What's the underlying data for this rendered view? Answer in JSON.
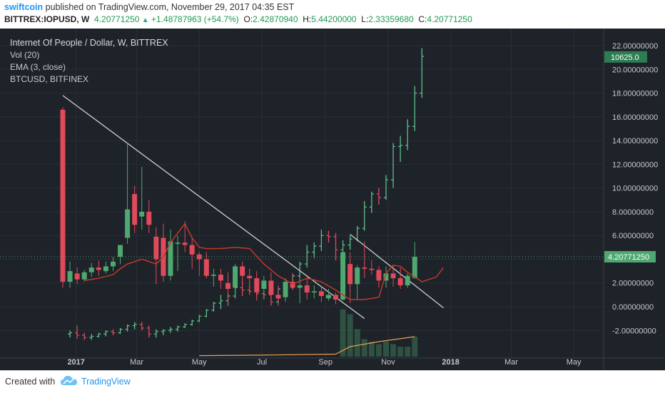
{
  "header": {
    "author": "swiftcoin",
    "publish_text": "published on TradingView.com, November 29, 2017 04:35 EST",
    "symbol": "BITTREX:IOPUSD, W",
    "last": "4.20771250",
    "change": "+1.48787963 (+54.7%)",
    "open": "2.42870940",
    "high": "5.44200000",
    "low": "2.33359680",
    "close": "4.20771250"
  },
  "legend": {
    "title": "Internet Of People / Dollar, W, BITTREX",
    "vol": "Vol (20)",
    "ema": "EMA (3, close)",
    "compare": "BTCUSD, BITFINEX"
  },
  "footer": {
    "created_with": "Created with",
    "brand": "TradingView"
  },
  "colors": {
    "up": "#4ea86f",
    "down": "#e04a5a",
    "ema": "#c0392b",
    "btc": "#2e7d52",
    "trend": "#d0d0d0",
    "background": "#1e2229",
    "grid": "#2a2e36"
  },
  "chart_data": {
    "type": "candlestick",
    "y_axis": {
      "min": -3,
      "max": 22,
      "ticks": [
        22,
        20,
        18,
        16,
        14,
        12,
        10,
        8,
        6,
        4,
        2,
        0,
        -2
      ],
      "tick_labels": [
        "22.00000000",
        "20.00000000",
        "18.00000000",
        "16.00000000",
        "14.00000000",
        "12.00000000",
        "10.00000000",
        "8.00000000",
        "6.00000000",
        "",
        "2.00000000",
        "0.00000000",
        "-2.00000000"
      ]
    },
    "x_axis": {
      "start": "2016-12-19",
      "end": "2018-05-28",
      "labels": [
        {
          "date": "2017-01-01",
          "text": "2017",
          "bold": true
        },
        {
          "date": "2017-03-01",
          "text": "Mar",
          "bold": false
        },
        {
          "date": "2017-05-01",
          "text": "May",
          "bold": false
        },
        {
          "date": "2017-07-01",
          "text": "Jul",
          "bold": false
        },
        {
          "date": "2017-09-01",
          "text": "Sep",
          "bold": false
        },
        {
          "date": "2017-11-01",
          "text": "Nov",
          "bold": false
        },
        {
          "date": "2018-01-01",
          "text": "2018",
          "bold": true
        },
        {
          "date": "2018-03-01",
          "text": "Mar",
          "bold": false
        },
        {
          "date": "2018-05-01",
          "text": "May",
          "bold": false
        }
      ]
    },
    "last_price": {
      "value": 4.2077125,
      "label": "4.20771250"
    },
    "compare_last": {
      "value": 21.05,
      "label": "10625.0"
    },
    "candles": [
      {
        "date": "2016-12-19",
        "o": 16.6,
        "h": 16.8,
        "l": 1.6,
        "c": 2.1
      },
      {
        "date": "2016-12-26",
        "o": 2.1,
        "h": 3.8,
        "l": 1.6,
        "c": 3.0
      },
      {
        "date": "2017-01-02",
        "o": 2.8,
        "h": 3.3,
        "l": 1.9,
        "c": 2.3
      },
      {
        "date": "2017-01-09",
        "o": 2.3,
        "h": 3.1,
        "l": 2.1,
        "c": 2.9
      },
      {
        "date": "2017-01-16",
        "o": 2.9,
        "h": 3.7,
        "l": 2.5,
        "c": 3.3
      },
      {
        "date": "2017-01-23",
        "o": 3.3,
        "h": 3.9,
        "l": 2.6,
        "c": 3.1
      },
      {
        "date": "2017-01-30",
        "o": 3.0,
        "h": 3.8,
        "l": 2.8,
        "c": 3.4
      },
      {
        "date": "2017-02-06",
        "o": 3.4,
        "h": 4.2,
        "l": 3.0,
        "c": 3.8
      },
      {
        "date": "2017-02-13",
        "o": 4.2,
        "h": 5.2,
        "l": 3.6,
        "c": 5.2
      },
      {
        "date": "2017-02-20",
        "o": 5.8,
        "h": 13.8,
        "l": 5.3,
        "c": 8.2
      },
      {
        "date": "2017-02-27",
        "o": 9.5,
        "h": 10.2,
        "l": 6.2,
        "c": 6.9
      },
      {
        "date": "2017-03-06",
        "o": 7.6,
        "h": 11.8,
        "l": 6.5,
        "c": 8.0
      },
      {
        "date": "2017-03-13",
        "o": 8.0,
        "h": 9.0,
        "l": 6.2,
        "c": 6.9
      },
      {
        "date": "2017-03-20",
        "o": 5.9,
        "h": 6.7,
        "l": 1.9,
        "c": 4.0
      },
      {
        "date": "2017-03-27",
        "o": 5.8,
        "h": 7.0,
        "l": 2.1,
        "c": 2.6
      },
      {
        "date": "2017-04-03",
        "o": 2.6,
        "h": 6.5,
        "l": 2.2,
        "c": 5.5
      },
      {
        "date": "2017-04-10",
        "o": 5.3,
        "h": 6.0,
        "l": 3.0,
        "c": 5.4
      },
      {
        "date": "2017-04-17",
        "o": 5.4,
        "h": 7.2,
        "l": 4.6,
        "c": 5.2
      },
      {
        "date": "2017-04-24",
        "o": 5.2,
        "h": 5.8,
        "l": 3.2,
        "c": 4.4
      },
      {
        "date": "2017-05-01",
        "o": 4.4,
        "h": 4.6,
        "l": 2.6,
        "c": 4.0
      },
      {
        "date": "2017-05-08",
        "o": 4.0,
        "h": 4.6,
        "l": 2.4,
        "c": 2.6
      },
      {
        "date": "2017-05-15",
        "o": 2.6,
        "h": 3.2,
        "l": 1.7,
        "c": 2.7
      },
      {
        "date": "2017-05-22",
        "o": 2.7,
        "h": 3.2,
        "l": 1.5,
        "c": 2.2
      },
      {
        "date": "2017-05-29",
        "o": 2.0,
        "h": 2.9,
        "l": 0.2,
        "c": 1.5
      },
      {
        "date": "2017-06-05",
        "o": 1.6,
        "h": 3.6,
        "l": 0.8,
        "c": 3.4
      },
      {
        "date": "2017-06-12",
        "o": 3.4,
        "h": 3.8,
        "l": 2.2,
        "c": 2.6
      },
      {
        "date": "2017-06-19",
        "o": 2.6,
        "h": 3.2,
        "l": 1.9,
        "c": 2.4
      },
      {
        "date": "2017-06-26",
        "o": 2.4,
        "h": 3.0,
        "l": 0.5,
        "c": 1.2
      },
      {
        "date": "2017-07-03",
        "o": 1.5,
        "h": 2.6,
        "l": 0.6,
        "c": 2.2
      },
      {
        "date": "2017-07-10",
        "o": 2.2,
        "h": 2.9,
        "l": 0.8,
        "c": 1.0
      },
      {
        "date": "2017-07-17",
        "o": 1.0,
        "h": 1.8,
        "l": 0.1,
        "c": 0.7
      },
      {
        "date": "2017-07-24",
        "o": 0.8,
        "h": 2.4,
        "l": 0.4,
        "c": 2.1
      },
      {
        "date": "2017-07-31",
        "o": 2.1,
        "h": 2.8,
        "l": 1.4,
        "c": 1.6
      },
      {
        "date": "2017-08-07",
        "o": 1.6,
        "h": 2.6,
        "l": 0.3,
        "c": 1.8
      },
      {
        "date": "2017-08-14",
        "o": 1.8,
        "h": 2.5,
        "l": 0.6,
        "c": 1.2
      },
      {
        "date": "2017-08-21",
        "o": 1.2,
        "h": 1.8,
        "l": 0.7,
        "c": 1.3
      },
      {
        "date": "2017-08-28",
        "o": 1.3,
        "h": 1.7,
        "l": 0.4,
        "c": 0.9
      },
      {
        "date": "2017-09-04",
        "o": 0.7,
        "h": 1.5,
        "l": 0.5,
        "c": 1.0
      },
      {
        "date": "2017-09-11",
        "o": 1.0,
        "h": 1.2,
        "l": 0.2,
        "c": 0.6
      },
      {
        "date": "2017-09-18",
        "o": 0.6,
        "h": 5.2,
        "l": 0.5,
        "c": 4.6
      },
      {
        "date": "2017-09-25",
        "o": 3.6,
        "h": 4.6,
        "l": 0.3,
        "c": 1.9
      },
      {
        "date": "2017-10-02",
        "o": 1.9,
        "h": 3.5,
        "l": 0.6,
        "c": 3.3
      },
      {
        "date": "2017-10-09",
        "o": 3.3,
        "h": 5.5,
        "l": 2.4,
        "c": 3.2
      },
      {
        "date": "2017-10-16",
        "o": 3.2,
        "h": 3.9,
        "l": 2.7,
        "c": 3.1
      },
      {
        "date": "2017-10-23",
        "o": 3.1,
        "h": 3.4,
        "l": 1.6,
        "c": 2.2
      },
      {
        "date": "2017-10-30",
        "o": 2.2,
        "h": 3.4,
        "l": 1.6,
        "c": 2.8
      },
      {
        "date": "2017-11-06",
        "o": 2.8,
        "h": 3.5,
        "l": 1.7,
        "c": 2.4
      },
      {
        "date": "2017-11-13",
        "o": 2.4,
        "h": 3.3,
        "l": 1.5,
        "c": 1.8
      },
      {
        "date": "2017-11-20",
        "o": 1.8,
        "h": 2.8,
        "l": 1.6,
        "c": 2.6
      },
      {
        "date": "2017-11-27",
        "o": 2.4287094,
        "h": 5.442,
        "l": 2.3335968,
        "c": 4.2077125
      }
    ],
    "ema_values": [
      {
        "date": "2017-01-09",
        "v": 2.2
      },
      {
        "date": "2017-01-23",
        "v": 2.4
      },
      {
        "date": "2017-02-06",
        "v": 2.7
      },
      {
        "date": "2017-02-13",
        "v": 3.2
      },
      {
        "date": "2017-02-20",
        "v": 3.6
      },
      {
        "date": "2017-03-06",
        "v": 4.0
      },
      {
        "date": "2017-03-20",
        "v": 3.6
      },
      {
        "date": "2017-03-27",
        "v": 4.2
      },
      {
        "date": "2017-04-03",
        "v": 5.4
      },
      {
        "date": "2017-04-17",
        "v": 7.0
      },
      {
        "date": "2017-04-24",
        "v": 5.8
      },
      {
        "date": "2017-05-01",
        "v": 5.0
      },
      {
        "date": "2017-05-08",
        "v": 4.9
      },
      {
        "date": "2017-05-22",
        "v": 4.9
      },
      {
        "date": "2017-06-05",
        "v": 5.0
      },
      {
        "date": "2017-06-19",
        "v": 4.9
      },
      {
        "date": "2017-07-03",
        "v": 3.6
      },
      {
        "date": "2017-07-17",
        "v": 2.6
      },
      {
        "date": "2017-07-31",
        "v": 1.9
      },
      {
        "date": "2017-08-14",
        "v": 2.4
      },
      {
        "date": "2017-08-28",
        "v": 2.1
      },
      {
        "date": "2017-09-11",
        "v": 1.4
      },
      {
        "date": "2017-09-18",
        "v": 1.0
      },
      {
        "date": "2017-09-25",
        "v": 0.6
      },
      {
        "date": "2017-10-09",
        "v": 0.6
      },
      {
        "date": "2017-10-23",
        "v": 0.8
      },
      {
        "date": "2017-10-30",
        "v": 2.8
      },
      {
        "date": "2017-11-06",
        "v": 3.5
      },
      {
        "date": "2017-11-13",
        "v": 3.4
      },
      {
        "date": "2017-11-20",
        "v": 2.9
      },
      {
        "date": "2017-12-04",
        "v": 2.1
      },
      {
        "date": "2017-12-18",
        "v": 2.5
      },
      {
        "date": "2017-12-25",
        "v": 3.3
      }
    ],
    "btc_bars": [
      {
        "date": "2016-12-26",
        "o": -2.3,
        "h": -2.0,
        "l": -2.6,
        "c": -2.2
      },
      {
        "date": "2017-01-02",
        "o": -2.2,
        "h": -1.6,
        "l": -2.7,
        "c": -2.4
      },
      {
        "date": "2017-01-09",
        "o": -2.4,
        "h": -2.2,
        "l": -2.8,
        "c": -2.6
      },
      {
        "date": "2017-01-16",
        "o": -2.6,
        "h": -2.3,
        "l": -2.8,
        "c": -2.5
      },
      {
        "date": "2017-01-23",
        "o": -2.5,
        "h": -2.2,
        "l": -2.6,
        "c": -2.3
      },
      {
        "date": "2017-01-30",
        "o": -2.3,
        "h": -2.0,
        "l": -2.5,
        "c": -2.1
      },
      {
        "date": "2017-02-06",
        "o": -2.1,
        "h": -1.9,
        "l": -2.4,
        "c": -2.2
      },
      {
        "date": "2017-02-13",
        "o": -2.2,
        "h": -1.8,
        "l": -2.3,
        "c": -1.9
      },
      {
        "date": "2017-02-20",
        "o": -1.9,
        "h": -1.5,
        "l": -2.1,
        "c": -1.6
      },
      {
        "date": "2017-02-27",
        "o": -1.6,
        "h": -1.3,
        "l": -1.9,
        "c": -1.5
      },
      {
        "date": "2017-03-06",
        "o": -1.5,
        "h": -1.3,
        "l": -2.0,
        "c": -1.8
      },
      {
        "date": "2017-03-13",
        "o": -1.8,
        "h": -1.6,
        "l": -2.6,
        "c": -2.3
      },
      {
        "date": "2017-03-20",
        "o": -2.3,
        "h": -1.9,
        "l": -2.6,
        "c": -2.1
      },
      {
        "date": "2017-03-27",
        "o": -2.1,
        "h": -1.9,
        "l": -2.4,
        "c": -2.0
      },
      {
        "date": "2017-04-03",
        "o": -2.0,
        "h": -1.7,
        "l": -2.2,
        "c": -1.9
      },
      {
        "date": "2017-04-10",
        "o": -1.9,
        "h": -1.6,
        "l": -2.1,
        "c": -1.7
      },
      {
        "date": "2017-04-17",
        "o": -1.7,
        "h": -1.4,
        "l": -1.8,
        "c": -1.5
      },
      {
        "date": "2017-04-24",
        "o": -1.5,
        "h": -1.1,
        "l": -1.6,
        "c": -1.2
      },
      {
        "date": "2017-05-01",
        "o": -1.2,
        "h": -0.7,
        "l": -1.3,
        "c": -0.8
      },
      {
        "date": "2017-05-08",
        "o": -0.8,
        "h": -0.2,
        "l": -0.9,
        "c": -0.3
      },
      {
        "date": "2017-05-15",
        "o": -0.3,
        "h": 0.4,
        "l": -0.4,
        "c": 0.3
      },
      {
        "date": "2017-05-22",
        "o": 0.3,
        "h": 1.0,
        "l": -0.2,
        "c": 0.5
      },
      {
        "date": "2017-05-29",
        "o": 0.5,
        "h": 1.1,
        "l": 0.1,
        "c": 0.9
      },
      {
        "date": "2017-06-05",
        "o": 0.9,
        "h": 1.8,
        "l": 0.7,
        "c": 1.6
      },
      {
        "date": "2017-06-12",
        "o": 1.6,
        "h": 2.2,
        "l": 0.9,
        "c": 1.4
      },
      {
        "date": "2017-06-19",
        "o": 1.4,
        "h": 1.9,
        "l": 1.0,
        "c": 1.3
      },
      {
        "date": "2017-06-26",
        "o": 1.3,
        "h": 1.6,
        "l": 0.8,
        "c": 1.1
      },
      {
        "date": "2017-07-03",
        "o": 1.1,
        "h": 1.4,
        "l": 0.7,
        "c": 1.0
      },
      {
        "date": "2017-07-10",
        "o": 1.0,
        "h": 1.2,
        "l": 0.1,
        "c": 0.4
      },
      {
        "date": "2017-07-17",
        "o": 0.4,
        "h": 1.6,
        "l": 0.2,
        "c": 1.5
      },
      {
        "date": "2017-07-24",
        "o": 1.5,
        "h": 1.9,
        "l": 1.1,
        "c": 1.7
      },
      {
        "date": "2017-07-31",
        "o": 1.7,
        "h": 2.8,
        "l": 1.5,
        "c": 2.6
      },
      {
        "date": "2017-08-07",
        "o": 2.6,
        "h": 3.8,
        "l": 2.4,
        "c": 3.6
      },
      {
        "date": "2017-08-14",
        "o": 3.6,
        "h": 5.2,
        "l": 3.3,
        "c": 4.6
      },
      {
        "date": "2017-08-21",
        "o": 4.6,
        "h": 5.4,
        "l": 4.1,
        "c": 5.1
      },
      {
        "date": "2017-08-28",
        "o": 5.1,
        "h": 6.5,
        "l": 4.7,
        "c": 6.0
      },
      {
        "date": "2017-09-04",
        "o": 6.0,
        "h": 6.4,
        "l": 5.4,
        "c": 5.9
      },
      {
        "date": "2017-09-11",
        "o": 5.9,
        "h": 6.2,
        "l": 3.9,
        "c": 4.8
      },
      {
        "date": "2017-09-18",
        "o": 4.8,
        "h": 5.6,
        "l": 4.4,
        "c": 5.2
      },
      {
        "date": "2017-09-25",
        "o": 5.2,
        "h": 6.0,
        "l": 4.8,
        "c": 5.7
      },
      {
        "date": "2017-10-02",
        "o": 5.7,
        "h": 6.8,
        "l": 5.5,
        "c": 6.6
      },
      {
        "date": "2017-10-09",
        "o": 6.6,
        "h": 8.9,
        "l": 6.4,
        "c": 8.4
      },
      {
        "date": "2017-10-16",
        "o": 8.4,
        "h": 9.7,
        "l": 7.9,
        "c": 9.5
      },
      {
        "date": "2017-10-23",
        "o": 9.5,
        "h": 10.0,
        "l": 8.6,
        "c": 9.2
      },
      {
        "date": "2017-10-30",
        "o": 9.2,
        "h": 11.1,
        "l": 9.0,
        "c": 10.7
      },
      {
        "date": "2017-11-06",
        "o": 10.7,
        "h": 13.8,
        "l": 10.0,
        "c": 13.5
      },
      {
        "date": "2017-11-13",
        "o": 13.5,
        "h": 14.4,
        "l": 12.2,
        "c": 13.6
      },
      {
        "date": "2017-11-20",
        "o": 13.6,
        "h": 15.8,
        "l": 13.2,
        "c": 15.2
      },
      {
        "date": "2017-11-27",
        "o": 15.2,
        "h": 18.6,
        "l": 14.8,
        "c": 18.0
      },
      {
        "date": "2017-12-04",
        "o": 18.0,
        "h": 21.8,
        "l": 17.6,
        "c": 21.1
      }
    ],
    "trend_lines": [
      {
        "from": {
          "date": "2016-12-19",
          "value": 17.8
        },
        "to": {
          "date": "2017-10-09",
          "value": -1.0
        }
      },
      {
        "from": {
          "date": "2017-09-25",
          "value": 6.1
        },
        "to": {
          "date": "2017-12-25",
          "value": -0.1
        }
      }
    ],
    "volume": {
      "color_up": "#4ea86f",
      "bars": [
        {
          "date": "2017-09-18",
          "v": 0.95
        },
        {
          "date": "2017-09-25",
          "v": 0.85
        },
        {
          "date": "2017-10-02",
          "v": 0.55
        },
        {
          "date": "2017-10-09",
          "v": 0.35
        },
        {
          "date": "2017-10-16",
          "v": 0.3
        },
        {
          "date": "2017-10-23",
          "v": 0.25
        },
        {
          "date": "2017-10-30",
          "v": 0.3
        },
        {
          "date": "2017-11-06",
          "v": 0.25
        },
        {
          "date": "2017-11-13",
          "v": 0.2
        },
        {
          "date": "2017-11-20",
          "v": 0.2
        },
        {
          "date": "2017-11-27",
          "v": 0.4
        }
      ]
    },
    "volume_ma": [
      {
        "date": "2017-05-01",
        "v": 0.02
      },
      {
        "date": "2017-07-01",
        "v": 0.03
      },
      {
        "date": "2017-09-11",
        "v": 0.05
      },
      {
        "date": "2017-09-25",
        "v": 0.2
      },
      {
        "date": "2017-10-23",
        "v": 0.3
      },
      {
        "date": "2017-11-27",
        "v": 0.4
      }
    ]
  }
}
